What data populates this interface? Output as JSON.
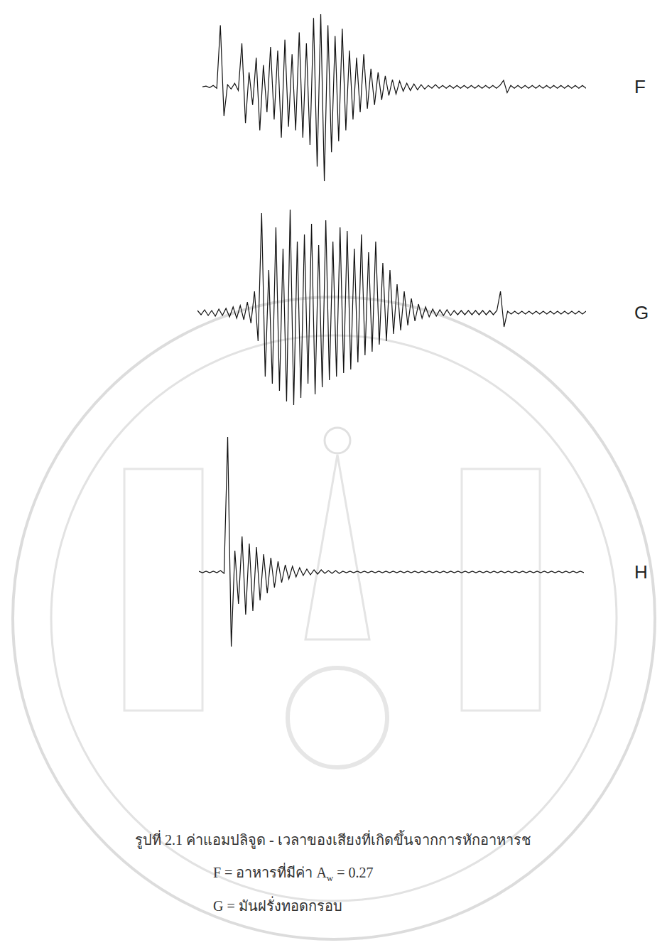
{
  "chart_data": [
    {
      "type": "line",
      "label": "F",
      "color": "#111111",
      "tick_labels": false,
      "xlim": [
        0,
        107
      ],
      "ylim": [
        -130,
        105
      ],
      "values": [
        0,
        1,
        -1,
        2,
        -2,
        85,
        -40,
        3,
        -3,
        5,
        -5,
        60,
        -50,
        20,
        -25,
        40,
        -60,
        30,
        -35,
        55,
        -45,
        50,
        -70,
        65,
        -55,
        45,
        -60,
        75,
        -70,
        60,
        -80,
        95,
        -110,
        100,
        -130,
        85,
        -90,
        70,
        -75,
        80,
        -60,
        50,
        -45,
        40,
        -35,
        45,
        -30,
        25,
        -25,
        20,
        -18,
        15,
        -12,
        10,
        -10,
        8,
        -6,
        5,
        -5,
        4,
        -4,
        3,
        -3,
        2,
        -2,
        3,
        -2,
        2,
        -2,
        2,
        -2,
        2,
        -2,
        2,
        -2,
        2,
        -2,
        2,
        -2,
        2,
        -2,
        2,
        -2,
        2,
        9,
        -8,
        2,
        -2,
        2,
        -2,
        2,
        -2,
        2,
        -2,
        2,
        -2,
        2,
        -2,
        2,
        -2,
        2,
        -2,
        2,
        -2,
        2,
        -2,
        2,
        -2
      ]
    },
    {
      "type": "line",
      "label": "G",
      "color": "#111111",
      "tick_labels": false,
      "xlim": [
        0,
        109
      ],
      "ylim": [
        -135,
        150
      ],
      "values": [
        3,
        -3,
        4,
        -4,
        3,
        -5,
        5,
        -4,
        6,
        -6,
        8,
        -8,
        10,
        -10,
        15,
        -15,
        30,
        -40,
        140,
        -90,
        60,
        -100,
        120,
        -110,
        90,
        -125,
        145,
        -130,
        100,
        -120,
        110,
        -100,
        125,
        -115,
        95,
        -105,
        130,
        -95,
        100,
        -90,
        120,
        -85,
        115,
        -80,
        90,
        -70,
        110,
        -60,
        85,
        -55,
        100,
        -45,
        70,
        -40,
        60,
        -30,
        40,
        -25,
        30,
        -18,
        20,
        -12,
        12,
        -8,
        8,
        -6,
        5,
        -5,
        4,
        -4,
        4,
        -4,
        3,
        -3,
        3,
        -3,
        3,
        -3,
        3,
        -3,
        3,
        -3,
        3,
        -3,
        3,
        30,
        -20,
        2,
        -2,
        2,
        -2,
        2,
        -2,
        2,
        -2,
        2,
        -2,
        2,
        -2,
        2,
        -2,
        2,
        -2,
        2,
        -2,
        2,
        -2,
        2,
        -2,
        2
      ]
    },
    {
      "type": "line",
      "label": "H",
      "color": "#111111",
      "tick_labels": false,
      "xlim": [
        0,
        107
      ],
      "ylim": [
        -110,
        195
      ],
      "values": [
        1,
        -1,
        1,
        -1,
        1,
        -1,
        2,
        -2,
        190,
        -105,
        30,
        -45,
        50,
        -60,
        40,
        -55,
        35,
        -40,
        25,
        -30,
        20,
        -22,
        15,
        -15,
        10,
        -10,
        8,
        -7,
        6,
        -5,
        4,
        -4,
        3,
        -3,
        3,
        -2,
        2,
        -2,
        2,
        -2,
        1,
        -1,
        1,
        -1,
        1,
        -1,
        1,
        -1,
        1,
        -1,
        1,
        -1,
        1,
        -1,
        1,
        -1,
        1,
        -1,
        1,
        -1,
        1,
        -1,
        1,
        -1,
        1,
        -1,
        1,
        -1,
        1,
        -1,
        1,
        -1,
        1,
        -1,
        1,
        -1,
        1,
        -1,
        1,
        -1,
        1,
        -1,
        1,
        -1,
        1,
        -1,
        1,
        -1,
        1,
        -1,
        1,
        -1,
        1,
        -1,
        1,
        -1,
        1,
        -1,
        1,
        -1,
        1,
        -1,
        1,
        -1,
        1,
        -1,
        1,
        -1
      ]
    }
  ],
  "caption": {
    "title": "รูปที่ 2.1 ค่าแอมปลิจูด - เวลาของเสียงที่เกิดขึ้นจากการหักอาหารช",
    "items": [
      {
        "text_before": "F = อาหารที่มีค่า A",
        "subscript": "w",
        "text_after": " = 0.27"
      },
      {
        "text_before": "G = มันฝรั่งทอดกรอบ",
        "subscript": "",
        "text_after": ""
      }
    ]
  }
}
